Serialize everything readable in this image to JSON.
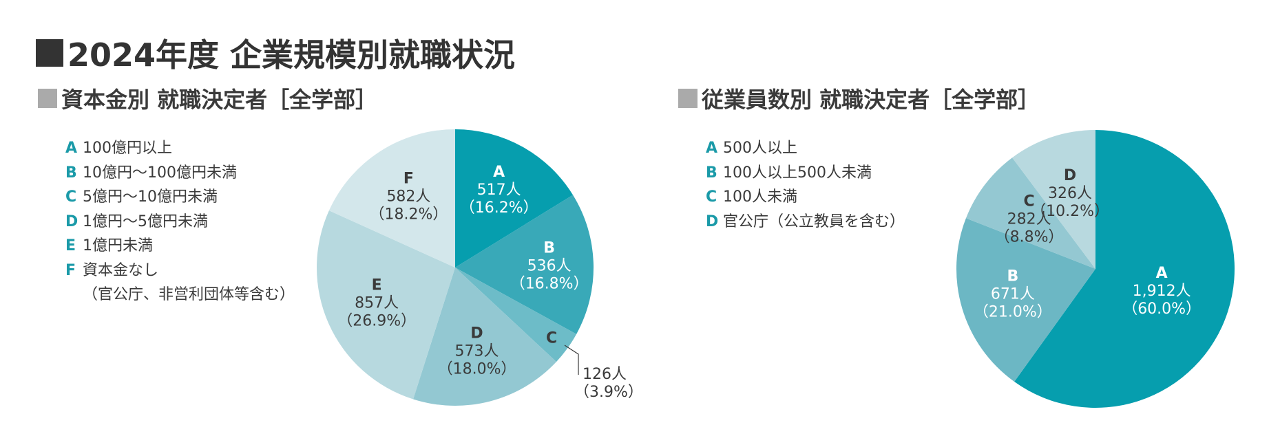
{
  "title": "2024年度 企業規模別就職状況",
  "charts": [
    {
      "subtitle": "資本金別 就職決定者［全学部］",
      "legend": [
        {
          "key": "A",
          "label": "100億円以上"
        },
        {
          "key": "B",
          "label": "10億円〜100億円未満"
        },
        {
          "key": "C",
          "label": "5億円〜10億円未満"
        },
        {
          "key": "D",
          "label": "1億円〜5億円未満"
        },
        {
          "key": "E",
          "label": "1億円未満"
        },
        {
          "key": "F",
          "label": "資本金なし",
          "label2": "（官公庁、非営利団体等含む）"
        }
      ]
    },
    {
      "subtitle": "従業員数別 就職決定者［全学部］",
      "legend": [
        {
          "key": "A",
          "label": "500人以上"
        },
        {
          "key": "B",
          "label": "100人以上500人未満"
        },
        {
          "key": "C",
          "label": "100人未満"
        },
        {
          "key": "D",
          "label": "官公庁（公立教員を含む）"
        }
      ]
    }
  ],
  "chart_data": [
    {
      "type": "pie",
      "title": "資本金別 就職決定者［全学部］",
      "categories": [
        "A",
        "B",
        "C",
        "D",
        "E",
        "F"
      ],
      "values": [
        517,
        536,
        126,
        573,
        857,
        582
      ],
      "value_labels": [
        "517人",
        "536人",
        "126人",
        "573人",
        "857人",
        "582人"
      ],
      "percent_labels": [
        "（16.2%）",
        "（16.8%）",
        "（3.9%）",
        "（18.0%）",
        "（26.9%）",
        "（18.2%）"
      ],
      "colors": [
        "#069eae",
        "#39a9b8",
        "#6dbcc8",
        "#93c8d2",
        "#b7d9df",
        "#d3e7eb"
      ],
      "label_colors": [
        "#ffffff",
        "#ffffff",
        "#3a3a3a",
        "#3a3a3a",
        "#3a3a3a",
        "#3a3a3a"
      ],
      "start_angle": 0,
      "direction": "clockwise"
    },
    {
      "type": "pie",
      "title": "従業員数別 就職決定者［全学部］",
      "categories": [
        "A",
        "B",
        "C",
        "D"
      ],
      "values": [
        1912,
        671,
        282,
        326
      ],
      "value_labels": [
        "1,912人",
        "671人",
        "282人",
        "326人"
      ],
      "percent_labels": [
        "（60.0%）",
        "（21.0%）",
        "（8.8%）",
        "（10.2%）"
      ],
      "colors": [
        "#069eae",
        "#6cb7c4",
        "#94c8d2",
        "#b8d9df"
      ],
      "label_colors": [
        "#ffffff",
        "#ffffff",
        "#3a3a3a",
        "#3a3a3a"
      ],
      "start_angle": 0,
      "direction": "clockwise"
    }
  ]
}
